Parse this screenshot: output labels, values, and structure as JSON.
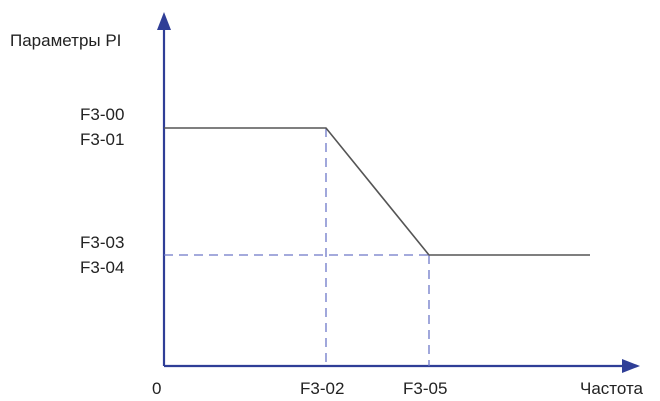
{
  "chart_data": {
    "type": "line",
    "ylabel": "Параметры PI",
    "xlabel": "Частота",
    "origin_label": "0",
    "x_ticks": [
      "F3-02",
      "F3-05"
    ],
    "y_ticks": [
      {
        "lines": [
          "F3-00",
          "F3-01"
        ]
      },
      {
        "lines": [
          "F3-03",
          "F3-04"
        ]
      }
    ],
    "series": [
      {
        "points": [
          {
            "x": "0",
            "y": "F3-00 / F3-01"
          },
          {
            "x": "F3-02",
            "y": "F3-00 / F3-01"
          },
          {
            "x": "F3-05",
            "y": "F3-03 / F3-04"
          },
          {
            "x": "max",
            "y": "F3-03 / F3-04"
          }
        ]
      }
    ],
    "guides": "dashed",
    "colors": {
      "axis": "#2f3e97",
      "curve": "#555555",
      "guide": "#6e78c8"
    }
  }
}
